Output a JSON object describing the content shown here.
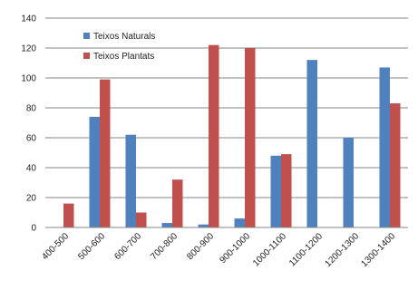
{
  "chart_data": {
    "type": "bar",
    "categories": [
      "400-500",
      "500-600",
      "600-700",
      "700-800",
      "800-900",
      "900-1000",
      "1000-1100",
      "1100-1200",
      "1200-1300",
      "1300-1400"
    ],
    "series": [
      {
        "name": "Teixos Naturals",
        "color": "#4F81BD",
        "values": [
          0,
          74,
          62,
          3,
          2,
          6,
          48,
          112,
          60,
          107
        ]
      },
      {
        "name": "Teixos Plantats",
        "color": "#C0504D",
        "values": [
          16,
          99,
          10,
          32,
          122,
          120,
          49,
          0,
          0,
          83
        ]
      }
    ],
    "ylim": [
      0,
      140
    ],
    "yticks": [
      0,
      20,
      40,
      60,
      80,
      100,
      120,
      140
    ],
    "grid": true,
    "legend_position": "top-left"
  }
}
